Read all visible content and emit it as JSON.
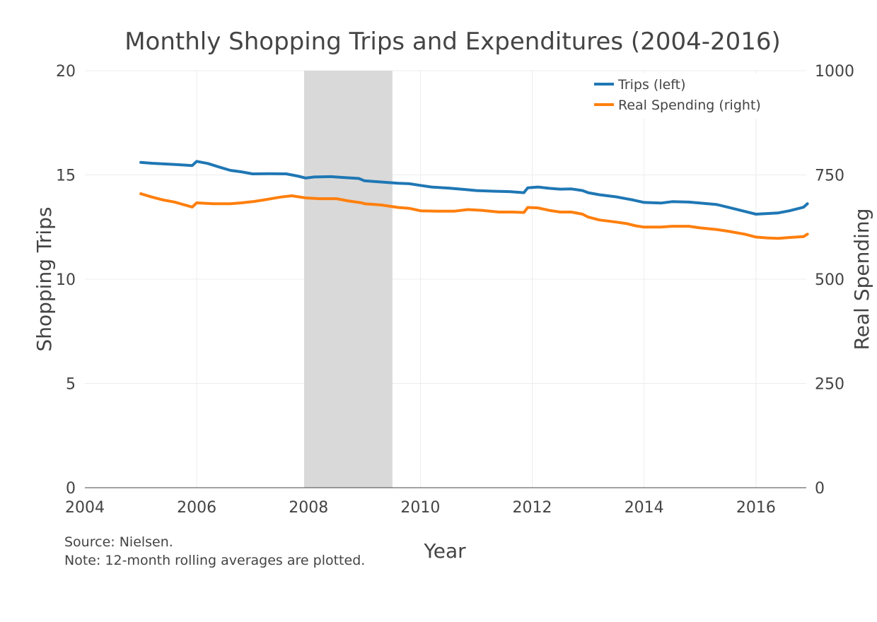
{
  "chart_data": {
    "type": "line",
    "title": "Monthly Shopping Trips and Expenditures (2004-2016)",
    "xlabel": "Year",
    "ylabel": "Shopping Trips",
    "y2label": "Real Spending",
    "xlim": [
      2004,
      2016.9
    ],
    "ylim": [
      0,
      20
    ],
    "y2lim": [
      0,
      1000
    ],
    "x_ticks": [
      2004,
      2006,
      2008,
      2010,
      2012,
      2014,
      2016
    ],
    "y_ticks": [
      0,
      5,
      10,
      15,
      20
    ],
    "y2_ticks": [
      0,
      250,
      500,
      750,
      1000
    ],
    "grid": true,
    "legend_position": "top-right",
    "recession_band": [
      2007.92,
      2009.5
    ],
    "series": [
      {
        "name": "Trips (left)",
        "axis": "left",
        "color": "#1f77b4",
        "points": [
          [
            2005.0,
            15.6
          ],
          [
            2005.2,
            15.56
          ],
          [
            2005.5,
            15.52
          ],
          [
            2005.8,
            15.47
          ],
          [
            2005.92,
            15.45
          ],
          [
            2006.0,
            15.65
          ],
          [
            2006.2,
            15.55
          ],
          [
            2006.4,
            15.38
          ],
          [
            2006.6,
            15.22
          ],
          [
            2006.8,
            15.15
          ],
          [
            2007.0,
            15.05
          ],
          [
            2007.3,
            15.06
          ],
          [
            2007.6,
            15.05
          ],
          [
            2007.8,
            14.95
          ],
          [
            2007.95,
            14.85
          ],
          [
            2008.1,
            14.9
          ],
          [
            2008.4,
            14.92
          ],
          [
            2008.6,
            14.88
          ],
          [
            2008.9,
            14.83
          ],
          [
            2009.0,
            14.72
          ],
          [
            2009.3,
            14.66
          ],
          [
            2009.6,
            14.6
          ],
          [
            2009.8,
            14.58
          ],
          [
            2010.0,
            14.5
          ],
          [
            2010.2,
            14.42
          ],
          [
            2010.5,
            14.37
          ],
          [
            2010.8,
            14.3
          ],
          [
            2011.0,
            14.25
          ],
          [
            2011.3,
            14.22
          ],
          [
            2011.6,
            14.2
          ],
          [
            2011.85,
            14.15
          ],
          [
            2011.92,
            14.38
          ],
          [
            2012.1,
            14.42
          ],
          [
            2012.3,
            14.36
          ],
          [
            2012.5,
            14.32
          ],
          [
            2012.7,
            14.33
          ],
          [
            2012.9,
            14.25
          ],
          [
            2013.0,
            14.15
          ],
          [
            2013.2,
            14.05
          ],
          [
            2013.5,
            13.95
          ],
          [
            2013.8,
            13.8
          ],
          [
            2014.0,
            13.68
          ],
          [
            2014.3,
            13.65
          ],
          [
            2014.5,
            13.72
          ],
          [
            2014.8,
            13.7
          ],
          [
            2015.0,
            13.65
          ],
          [
            2015.3,
            13.58
          ],
          [
            2015.5,
            13.45
          ],
          [
            2015.8,
            13.25
          ],
          [
            2016.0,
            13.12
          ],
          [
            2016.2,
            13.15
          ],
          [
            2016.4,
            13.18
          ],
          [
            2016.6,
            13.28
          ],
          [
            2016.85,
            13.45
          ],
          [
            2016.92,
            13.62
          ]
        ]
      },
      {
        "name": "Real Spending (right)",
        "axis": "right",
        "color": "#ff7f0e",
        "points": [
          [
            2005.0,
            705
          ],
          [
            2005.2,
            697
          ],
          [
            2005.4,
            690
          ],
          [
            2005.6,
            685
          ],
          [
            2005.92,
            673
          ],
          [
            2006.0,
            683
          ],
          [
            2006.3,
            681
          ],
          [
            2006.6,
            681
          ],
          [
            2006.8,
            683
          ],
          [
            2007.0,
            686
          ],
          [
            2007.2,
            690
          ],
          [
            2007.5,
            697
          ],
          [
            2007.7,
            700
          ],
          [
            2007.95,
            695
          ],
          [
            2008.2,
            693
          ],
          [
            2008.5,
            693
          ],
          [
            2008.7,
            688
          ],
          [
            2008.95,
            683
          ],
          [
            2009.0,
            681
          ],
          [
            2009.3,
            678
          ],
          [
            2009.6,
            672
          ],
          [
            2009.8,
            670
          ],
          [
            2010.0,
            664
          ],
          [
            2010.3,
            663
          ],
          [
            2010.6,
            663
          ],
          [
            2010.85,
            667
          ],
          [
            2011.1,
            665
          ],
          [
            2011.4,
            661
          ],
          [
            2011.65,
            661
          ],
          [
            2011.85,
            660
          ],
          [
            2011.92,
            672
          ],
          [
            2012.1,
            671
          ],
          [
            2012.3,
            665
          ],
          [
            2012.5,
            661
          ],
          [
            2012.7,
            661
          ],
          [
            2012.9,
            656
          ],
          [
            2013.0,
            649
          ],
          [
            2013.2,
            642
          ],
          [
            2013.5,
            637
          ],
          [
            2013.7,
            633
          ],
          [
            2013.85,
            628
          ],
          [
            2014.0,
            625
          ],
          [
            2014.3,
            625
          ],
          [
            2014.5,
            627
          ],
          [
            2014.8,
            627
          ],
          [
            2015.0,
            623
          ],
          [
            2015.3,
            619
          ],
          [
            2015.5,
            615
          ],
          [
            2015.8,
            608
          ],
          [
            2016.0,
            601
          ],
          [
            2016.2,
            599
          ],
          [
            2016.4,
            598
          ],
          [
            2016.6,
            600
          ],
          [
            2016.85,
            602
          ],
          [
            2016.92,
            608
          ]
        ]
      }
    ],
    "source_note": "Source: Nielsen.",
    "method_note": "Note: 12-month rolling averages are plotted."
  }
}
